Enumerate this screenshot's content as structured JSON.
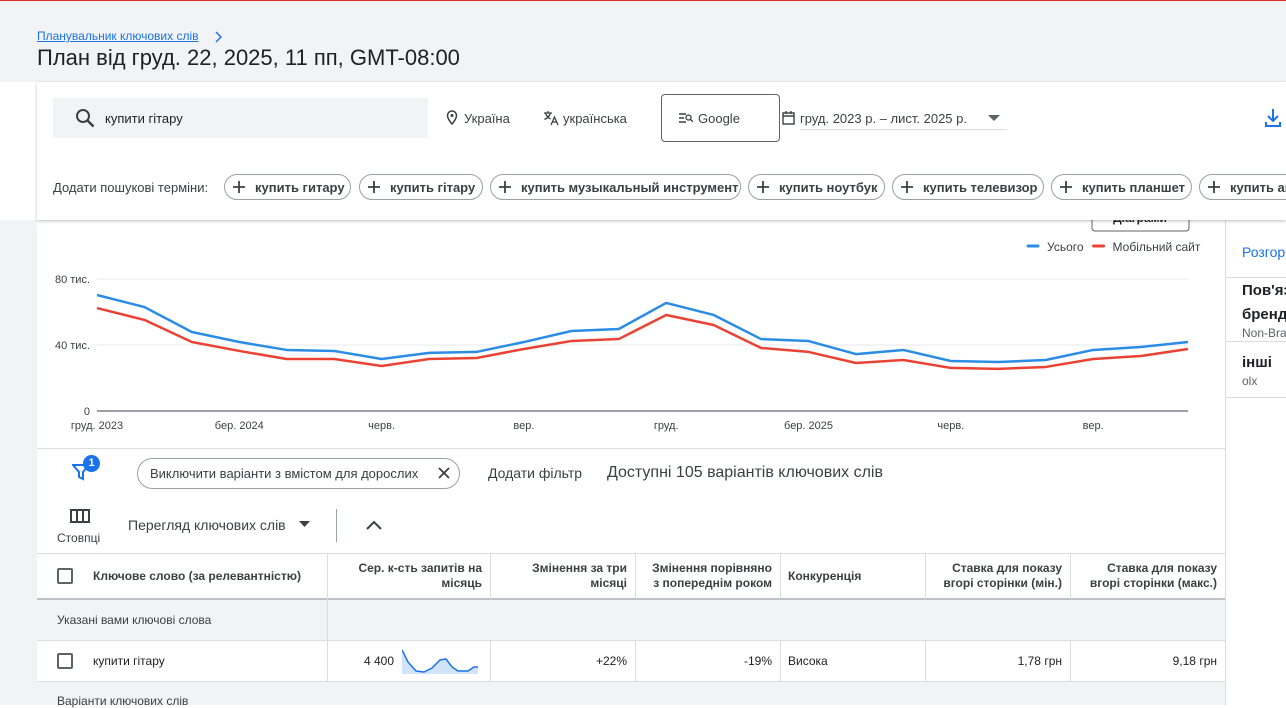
{
  "header": {
    "breadcrumb": "Планувальник ключових слів",
    "title": "План від груд. 22, 2025, 11 пп, GMT-08:00"
  },
  "toolbar": {
    "search": "купити гітару",
    "location": "Україна",
    "language": "українська",
    "network": "Google",
    "date_range": "груд. 2023 р. – лист. 2025 р."
  },
  "suggestions": {
    "label": "Додати пошукові терміни:",
    "chips": [
      "купить гитару",
      "купить гітару",
      "купить музыкальный инструмент",
      "купить ноутбук",
      "купить телевизор",
      "купить планшет",
      "купить ак"
    ]
  },
  "chart_data": {
    "type": "line",
    "button": "Діаграми",
    "categories": [
      "груд. 2023",
      null,
      null,
      "бер. 2024",
      null,
      null,
      "черв.",
      null,
      null,
      "вер.",
      null,
      null,
      "груд.",
      null,
      null,
      "бер. 2025",
      null,
      null,
      "черв.",
      null,
      null,
      "вер.",
      null,
      null
    ],
    "series": [
      {
        "name": "Усього",
        "color": "#2b8ce6",
        "values": [
          70300,
          63000,
          47900,
          41800,
          37000,
          36400,
          31500,
          35200,
          35800,
          41800,
          48500,
          49700,
          65500,
          58200,
          43600,
          42400,
          34500,
          37000,
          30300,
          29700,
          30900,
          37000,
          38800,
          41800
        ]
      },
      {
        "name": "Мобільний сайт",
        "color": "#ea4335",
        "values": [
          62400,
          55200,
          41800,
          36400,
          31500,
          31500,
          27300,
          31500,
          32100,
          37600,
          42400,
          43600,
          58200,
          52100,
          38200,
          35800,
          29100,
          30900,
          26100,
          25500,
          26700,
          31500,
          33300,
          37600
        ]
      }
    ],
    "ylim": [
      0,
      80000
    ],
    "yticks": [
      0,
      {
        "value": 40000,
        "label": "40 тис."
      },
      {
        "value": 80000,
        "label": "80 тис."
      }
    ],
    "grid": true,
    "legend": "top-right"
  },
  "filters": {
    "badge": "1",
    "chip": "Виключити варіанти з вмістом для дорослих",
    "add": "Додати фільтр",
    "available": "Доступні 105 варіантів ключових слів"
  },
  "view": {
    "columns": "Стовпці",
    "mode": "Перегляд ключових слів"
  },
  "table": {
    "headers": [
      "Ключове слово (за релевантністю)",
      "Сер. к-сть запитів на місяць",
      "Змінення за три місяці",
      "Змінення порівняно з попереднім роком",
      "Конкуренція",
      "Ставка для показу вгорі сторінки (мін.)",
      "Ставка для показу вгорі сторінки (макс.)"
    ],
    "groups": [
      "Указані вами ключові слова",
      "Варіанти ключових слів"
    ],
    "rows": [
      [
        "купити гітару",
        "4 400",
        "+22%",
        "-19%",
        "Висока",
        "1,78 грн",
        "9,18 грн"
      ]
    ]
  },
  "sidebar": {
    "tab": "Розгор",
    "items": [
      {
        "title": "Пов'яз",
        "title2": "бренд",
        "sub": "Non-Bra"
      },
      {
        "title": "інші",
        "sub": "olx"
      }
    ]
  }
}
